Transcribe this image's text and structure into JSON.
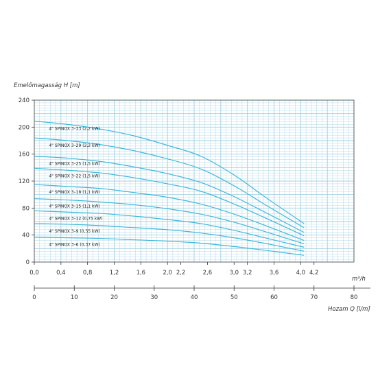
{
  "chart_data": {
    "type": "line",
    "ylabel": "Emelőmagasság H [m]",
    "xlabel": "m³/h",
    "x2label": "Hozam Q [l/m]",
    "xlim": [
      0,
      4.8
    ],
    "ylim": [
      0,
      240
    ],
    "x_ticks": [
      0.0,
      0.4,
      0.8,
      1.2,
      1.6,
      2.0,
      2.2,
      2.6,
      3.0,
      3.2,
      3.6,
      4.0,
      4.2
    ],
    "x_tick_labels": [
      "0,0",
      "0,4",
      "0,8",
      "1,2",
      "1,6",
      "2,0",
      "2,2",
      "2,6",
      "3,0",
      "3,2",
      "3,6",
      "4,0",
      "4,2"
    ],
    "y_ticks": [
      0,
      40,
      80,
      120,
      160,
      200,
      240
    ],
    "x2_ticks": [
      0,
      10,
      20,
      30,
      40,
      50,
      60,
      70,
      80
    ],
    "grid": true,
    "line_color": "#3fb7d9",
    "grid_color": "#9fcfdf",
    "series": [
      {
        "name": "4\" SPINOX 3–33 (2,2 kW)",
        "x": [
          0,
          0.5,
          1.0,
          1.5,
          2.0,
          2.5,
          3.0,
          3.5,
          4.05
        ],
        "y": [
          209,
          204,
          197,
          187,
          173,
          157,
          129,
          94,
          57
        ]
      },
      {
        "name": "4\" SPINOX 3–29 (2,2 kW)",
        "x": [
          0,
          0.5,
          1.0,
          1.5,
          2.0,
          2.5,
          3.0,
          3.5,
          4.05
        ],
        "y": [
          184,
          180,
          174,
          165,
          153,
          138,
          113,
          83,
          51
        ]
      },
      {
        "name": "4\" SPINOX 3–25 (1,5 kW)",
        "x": [
          0,
          0.5,
          1.0,
          1.5,
          2.0,
          2.5,
          3.0,
          3.5,
          4.05
        ],
        "y": [
          157,
          154,
          149,
          141,
          131,
          118,
          97,
          72,
          44
        ]
      },
      {
        "name": "4\" SPINOX 3–22 (1,5 kW)",
        "x": [
          0,
          0.5,
          1.0,
          1.5,
          2.0,
          2.5,
          3.0,
          3.5,
          4.05
        ],
        "y": [
          139,
          136,
          132,
          125,
          116,
          105,
          86,
          64,
          39
        ]
      },
      {
        "name": "4\" SPINOX 3–18 (1,1 kW)",
        "x": [
          0,
          0.5,
          1.0,
          1.5,
          2.0,
          2.5,
          3.0,
          3.5,
          4.05
        ],
        "y": [
          115,
          112,
          109,
          103,
          96,
          86,
          71,
          53,
          32
        ]
      },
      {
        "name": "4\" SPINOX 3–15 (1,1 kW)",
        "x": [
          0,
          0.5,
          1.0,
          1.5,
          2.0,
          2.5,
          3.0,
          3.5,
          4.05
        ],
        "y": [
          94,
          92,
          89,
          85,
          79,
          71,
          59,
          44,
          27
        ]
      },
      {
        "name": "4\" SPINOX 3–12 (0,75 kW)",
        "x": [
          0,
          0.5,
          1.0,
          1.5,
          2.0,
          2.5,
          3.0,
          3.5,
          4.05
        ],
        "y": [
          76,
          74,
          72,
          68,
          63,
          57,
          47,
          35,
          22
        ]
      },
      {
        "name": "4\" SPINOX 3–9 (0,55 kW)",
        "x": [
          0,
          0.5,
          1.0,
          1.5,
          2.0,
          2.5,
          3.0,
          3.5,
          4.05
        ],
        "y": [
          57,
          56,
          54,
          51,
          48,
          43,
          36,
          27,
          16
        ]
      },
      {
        "name": "4\" SPINOX 3–6 (0,37 kW)",
        "x": [
          0,
          0.5,
          1.0,
          1.5,
          2.0,
          2.5,
          3.0,
          3.5,
          4.05
        ],
        "y": [
          37,
          36,
          35,
          33,
          31,
          28,
          23,
          17,
          10
        ]
      }
    ]
  }
}
